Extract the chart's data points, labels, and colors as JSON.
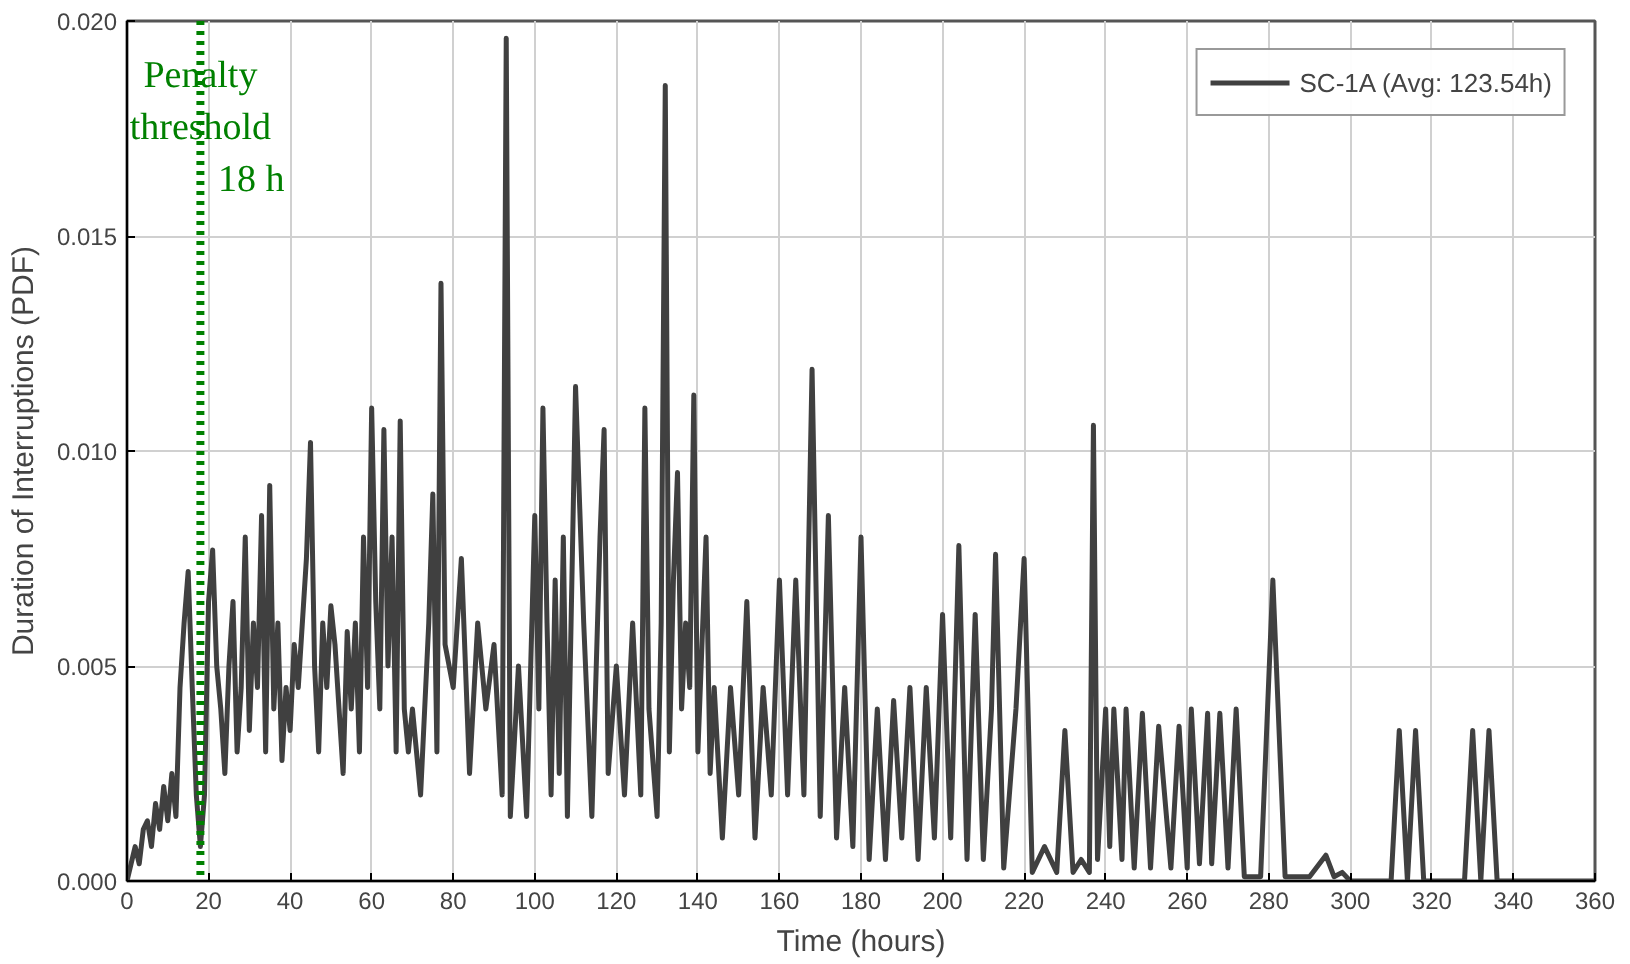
{
  "chart_data": {
    "type": "line",
    "xlabel": "Time (hours)",
    "ylabel": "Duration of Interruptions (PDF)",
    "xlim": [
      0,
      360
    ],
    "xticks": [
      0,
      20,
      40,
      60,
      80,
      100,
      120,
      140,
      160,
      180,
      200,
      220,
      240,
      260,
      280,
      300,
      320,
      340,
      360
    ],
    "ylim": [
      0,
      0.02
    ],
    "yticks": [
      {
        "value": 0,
        "label": "0.000"
      },
      {
        "value": 0.005,
        "label": "0.005"
      },
      {
        "value": 0.01,
        "label": "0.010"
      },
      {
        "value": 0.015,
        "label": "0.015"
      },
      {
        "value": 0.02,
        "label": "0.020"
      }
    ],
    "grid": true,
    "legend": "top right",
    "marker": "none",
    "line_style": "solid",
    "ref_lines": [
      {
        "axis": "x",
        "value": 18,
        "label": "Penalty\nthreshold\n18 h",
        "color": "#008000",
        "line_style": "dotted"
      }
    ],
    "series": [
      {
        "name": "SC-1A (Avg: 123.54h)",
        "color": "#404040",
        "x": [
          0,
          2,
          3,
          4,
          5,
          6,
          7,
          8,
          9,
          10,
          11,
          12,
          13,
          14,
          15,
          16,
          17,
          18,
          19,
          20,
          21,
          22,
          23,
          24,
          25,
          26,
          27,
          28,
          29,
          30,
          31,
          32,
          33,
          34,
          35,
          36,
          37,
          38,
          39,
          40,
          41,
          42,
          43,
          44,
          45,
          46,
          47,
          48,
          49,
          50,
          51,
          52,
          53,
          54,
          55,
          56,
          57,
          58,
          59,
          60,
          61,
          62,
          63,
          64,
          65,
          66,
          67,
          68,
          69,
          70,
          72,
          74,
          75,
          76,
          77,
          78,
          80,
          82,
          84,
          86,
          88,
          90,
          92,
          93,
          94,
          96,
          98,
          100,
          101,
          102,
          103,
          104,
          105,
          106,
          107,
          108,
          110,
          112,
          114,
          116,
          117,
          118,
          120,
          122,
          124,
          126,
          127,
          128,
          130,
          131,
          132,
          133,
          134,
          135,
          136,
          137,
          138,
          139,
          140,
          142,
          143,
          144,
          146,
          148,
          150,
          152,
          154,
          156,
          158,
          160,
          162,
          164,
          166,
          168,
          170,
          172,
          174,
          176,
          178,
          180,
          182,
          184,
          186,
          188,
          190,
          192,
          194,
          196,
          198,
          200,
          202,
          204,
          206,
          208,
          210,
          212,
          213,
          215,
          218,
          220,
          222,
          225,
          228,
          230,
          232,
          234,
          236,
          237,
          238,
          240,
          241,
          242,
          244,
          245,
          247,
          249,
          251,
          253,
          256,
          258,
          260,
          261,
          263,
          265,
          266,
          268,
          270,
          272,
          274,
          278,
          281,
          284,
          290,
          294,
          296,
          298,
          300,
          310,
          312,
          314,
          316,
          318,
          328,
          330,
          332,
          334,
          336,
          360
        ],
        "values": [
          0,
          0.0008,
          0.0004,
          0.0012,
          0.0014,
          0.0008,
          0.0018,
          0.0012,
          0.0022,
          0.0014,
          0.0025,
          0.0015,
          0.0045,
          0.006,
          0.0072,
          0.0045,
          0.002,
          0.0008,
          0.002,
          0.0065,
          0.0077,
          0.005,
          0.004,
          0.0025,
          0.005,
          0.0065,
          0.003,
          0.0045,
          0.008,
          0.0035,
          0.006,
          0.0045,
          0.0085,
          0.003,
          0.0092,
          0.004,
          0.006,
          0.0028,
          0.0045,
          0.0035,
          0.0055,
          0.0045,
          0.006,
          0.0075,
          0.0102,
          0.005,
          0.003,
          0.006,
          0.0045,
          0.0064,
          0.0055,
          0.004,
          0.0025,
          0.0058,
          0.004,
          0.006,
          0.003,
          0.008,
          0.0045,
          0.011,
          0.0065,
          0.004,
          0.0105,
          0.005,
          0.008,
          0.003,
          0.0107,
          0.004,
          0.003,
          0.004,
          0.002,
          0.006,
          0.009,
          0.003,
          0.0139,
          0.0055,
          0.0045,
          0.0075,
          0.0025,
          0.006,
          0.004,
          0.0055,
          0.002,
          0.0196,
          0.0015,
          0.005,
          0.0015,
          0.0085,
          0.004,
          0.011,
          0.006,
          0.002,
          0.007,
          0.0025,
          0.008,
          0.0015,
          0.0115,
          0.006,
          0.0015,
          0.008,
          0.0105,
          0.0025,
          0.005,
          0.002,
          0.006,
          0.002,
          0.011,
          0.004,
          0.0015,
          0.006,
          0.0185,
          0.003,
          0.007,
          0.0095,
          0.004,
          0.006,
          0.0045,
          0.0113,
          0.003,
          0.008,
          0.0025,
          0.0045,
          0.001,
          0.0045,
          0.002,
          0.0065,
          0.001,
          0.0045,
          0.002,
          0.007,
          0.002,
          0.007,
          0.002,
          0.0119,
          0.0015,
          0.0085,
          0.001,
          0.0045,
          0.0008,
          0.008,
          0.0005,
          0.004,
          0.0005,
          0.0042,
          0.001,
          0.0045,
          0.0005,
          0.0045,
          0.001,
          0.0062,
          0.001,
          0.0078,
          0.0005,
          0.0062,
          0.0005,
          0.004,
          0.0076,
          0.0003,
          0.004,
          0.0075,
          0.0002,
          0.0008,
          0.0002,
          0.0035,
          0.0002,
          0.0005,
          0.0002,
          0.0106,
          0.0005,
          0.004,
          0.0008,
          0.004,
          0.0005,
          0.004,
          0.0003,
          0.0039,
          0.0003,
          0.0036,
          0.0003,
          0.0036,
          0.0003,
          0.004,
          0.0004,
          0.0039,
          0.0004,
          0.0039,
          0.0003,
          0.004,
          0.0001,
          0.0001,
          0.007,
          0.0001,
          0.0001,
          0.0006,
          0.0001,
          0.0002,
          0,
          0,
          0.0035,
          0,
          0.0035,
          0,
          0,
          0.0035,
          0,
          0.0035,
          0,
          0
        ]
      }
    ]
  }
}
